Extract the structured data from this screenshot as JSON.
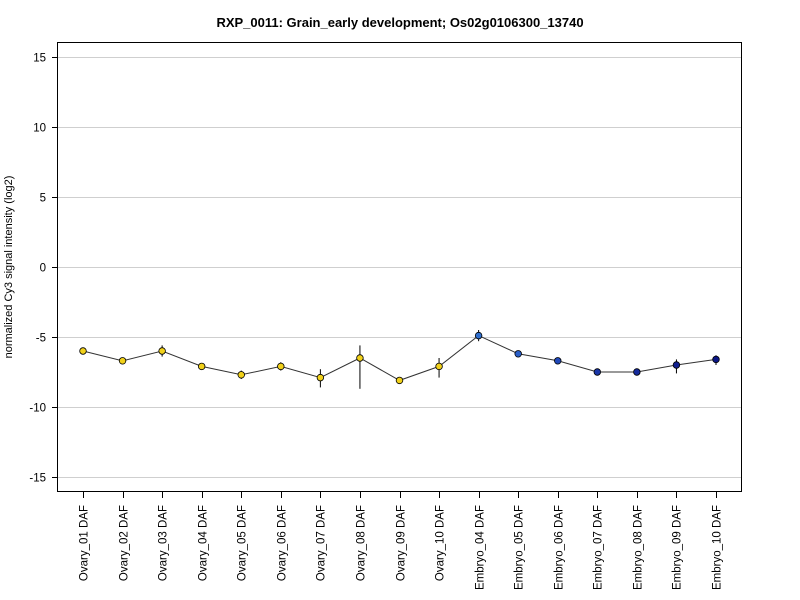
{
  "chart_data": {
    "type": "line",
    "title": "RXP_0011: Grain_early development; Os02g0106300_13740",
    "xlabel": "",
    "ylabel": "normalized Cy3 signal intensity (log2)",
    "ylim": [
      -16,
      16
    ],
    "yticks": [
      15,
      10,
      5,
      0,
      -5,
      -10,
      -15
    ],
    "grid": true,
    "categories": [
      "Ovary_01 DAF",
      "Ovary_02 DAF",
      "Ovary_03 DAF",
      "Ovary_04 DAF",
      "Ovary_05 DAF",
      "Ovary_06 DAF",
      "Ovary_07 DAF",
      "Ovary_08 DAF",
      "Ovary_09 DAF",
      "Ovary_10 DAF",
      "Embryo_04 DAF",
      "Embryo_05 DAF",
      "Embryo_06 DAF",
      "Embryo_07 DAF",
      "Embryo_08 DAF",
      "Embryo_09 DAF",
      "Embryo_10 DAF"
    ],
    "values": [
      -6.0,
      -6.7,
      -6.0,
      -7.1,
      -7.7,
      -7.1,
      -7.9,
      -6.5,
      -8.1,
      -7.1,
      -4.9,
      -6.2,
      -6.7,
      -7.5,
      -7.5,
      -7.0,
      -6.6
    ],
    "error_low": [
      -6.1,
      -6.9,
      -6.4,
      -7.2,
      -8.0,
      -7.4,
      -8.6,
      -8.7,
      -8.3,
      -7.9,
      -5.3,
      -6.3,
      -6.8,
      -7.7,
      -7.6,
      -7.6,
      -7.0
    ],
    "error_high": [
      -5.9,
      -6.5,
      -5.6,
      -7.0,
      -7.4,
      -6.8,
      -7.3,
      -5.6,
      -7.9,
      -6.5,
      -4.5,
      -6.1,
      -6.6,
      -7.3,
      -7.4,
      -6.6,
      -6.3
    ],
    "point_colors": [
      "#f1d11a",
      "#f1d11a",
      "#f1d11a",
      "#f1d11a",
      "#f1d11a",
      "#f1d11a",
      "#f1d11a",
      "#f1d11a",
      "#f1d11a",
      "#f1d11a",
      "#2f6fcf",
      "#2a5fc8",
      "#2048b8",
      "#1a36a8",
      "#152a9c",
      "#101f90",
      "#0b1685"
    ]
  }
}
